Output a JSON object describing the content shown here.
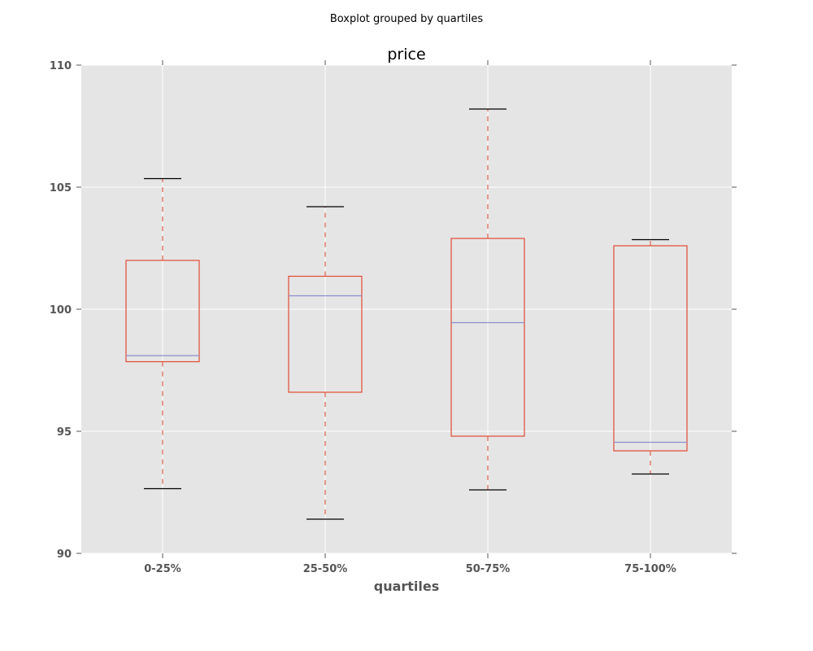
{
  "chart_data": {
    "type": "box",
    "suptitle": "Boxplot grouped by quartiles",
    "title": "price",
    "xlabel": "quartiles",
    "ylabel": "",
    "ylim": [
      90,
      110
    ],
    "yticks": [
      90,
      95,
      100,
      105,
      110
    ],
    "grid": true,
    "categories": [
      "0-25%",
      "25-50%",
      "50-75%",
      "75-100%"
    ],
    "boxes": [
      {
        "category": "0-25%",
        "whisker_low": 92.65,
        "q1": 97.85,
        "median": 98.1,
        "q3": 102.0,
        "whisker_high": 105.35
      },
      {
        "category": "25-50%",
        "whisker_low": 91.4,
        "q1": 96.6,
        "median": 100.55,
        "q3": 101.35,
        "whisker_high": 104.2
      },
      {
        "category": "50-75%",
        "whisker_low": 92.6,
        "q1": 94.8,
        "median": 99.45,
        "q3": 102.9,
        "whisker_high": 108.2
      },
      {
        "category": "75-100%",
        "whisker_low": 93.25,
        "q1": 94.2,
        "median": 94.55,
        "q3": 102.6,
        "whisker_high": 102.85
      }
    ],
    "colors": {
      "box": "#e24a33",
      "median": "#8c8ecf",
      "whisker": "#e24a33",
      "cap": "#000000",
      "background": "#e5e5e5",
      "grid": "#ffffff"
    }
  }
}
